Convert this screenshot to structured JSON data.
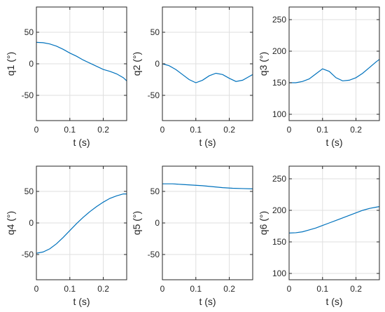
{
  "chart_data": [
    {
      "type": "line",
      "xlabel": "t (s)",
      "ylabel": "q1 (°)",
      "xlim": [
        0,
        0.27
      ],
      "ylim": [
        -90,
        90
      ],
      "xticks": [
        0,
        0.1,
        0.2
      ],
      "xtick_labels": [
        "0",
        "0.1",
        "0.2"
      ],
      "yticks": [
        -50,
        0,
        50
      ],
      "ytick_labels": [
        "-50",
        "0",
        "50"
      ],
      "grid": true,
      "x": [
        0,
        0.02,
        0.04,
        0.06,
        0.08,
        0.1,
        0.12,
        0.14,
        0.16,
        0.18,
        0.2,
        0.22,
        0.24,
        0.26,
        0.27
      ],
      "y": [
        34,
        33.5,
        31.5,
        28,
        23,
        17,
        12,
        6,
        1,
        -4,
        -9,
        -12,
        -16,
        -22,
        -27
      ]
    },
    {
      "type": "line",
      "xlabel": "t (s)",
      "ylabel": "q2 (°)",
      "xlim": [
        0,
        0.27
      ],
      "ylim": [
        -90,
        90
      ],
      "xticks": [
        0,
        0.1,
        0.2
      ],
      "xtick_labels": [
        "0",
        "0.1",
        "0.2"
      ],
      "yticks": [
        -50,
        0,
        50
      ],
      "ytick_labels": [
        "-50",
        "0",
        "50"
      ],
      "grid": true,
      "x": [
        0,
        0.02,
        0.04,
        0.06,
        0.08,
        0.1,
        0.12,
        0.14,
        0.16,
        0.18,
        0.2,
        0.22,
        0.24,
        0.26,
        0.27
      ],
      "y": [
        0,
        -3,
        -9,
        -17,
        -25,
        -30,
        -26,
        -19,
        -15,
        -17,
        -23,
        -28,
        -26,
        -20,
        -17
      ]
    },
    {
      "type": "line",
      "xlabel": "t (s)",
      "ylabel": "q3 (°)",
      "xlim": [
        0,
        0.27
      ],
      "ylim": [
        90,
        270
      ],
      "xticks": [
        0,
        0.1,
        0.2
      ],
      "xtick_labels": [
        "0",
        "0.1",
        "0.2"
      ],
      "yticks": [
        100,
        150,
        200,
        250
      ],
      "ytick_labels": [
        "100",
        "150",
        "200",
        "250"
      ],
      "grid": true,
      "x": [
        0,
        0.02,
        0.04,
        0.06,
        0.08,
        0.1,
        0.12,
        0.14,
        0.16,
        0.18,
        0.2,
        0.22,
        0.24,
        0.26,
        0.27
      ],
      "y": [
        150,
        150,
        152,
        156,
        164,
        172,
        168,
        158,
        153,
        154,
        158,
        165,
        174,
        183,
        187
      ]
    },
    {
      "type": "line",
      "xlabel": "t (s)",
      "ylabel": "q4 (°)",
      "xlim": [
        0,
        0.27
      ],
      "ylim": [
        -90,
        90
      ],
      "xticks": [
        0,
        0.1,
        0.2
      ],
      "xtick_labels": [
        "0",
        "0.1",
        "0.2"
      ],
      "yticks": [
        -50,
        0,
        50
      ],
      "ytick_labels": [
        "-50",
        "0",
        "50"
      ],
      "grid": true,
      "x": [
        0,
        0.02,
        0.04,
        0.06,
        0.08,
        0.1,
        0.12,
        0.14,
        0.16,
        0.18,
        0.2,
        0.22,
        0.24,
        0.26,
        0.27
      ],
      "y": [
        -48,
        -46,
        -41,
        -33,
        -23,
        -12,
        -1,
        9,
        18,
        26,
        33,
        39,
        43,
        46,
        46
      ]
    },
    {
      "type": "line",
      "xlabel": "t (s)",
      "ylabel": "q5 (°)",
      "xlim": [
        0,
        0.27
      ],
      "ylim": [
        -90,
        90
      ],
      "xticks": [
        0,
        0.1,
        0.2
      ],
      "xtick_labels": [
        "0",
        "0.1",
        "0.2"
      ],
      "yticks": [
        -50,
        0,
        50
      ],
      "ytick_labels": [
        "-50",
        "0",
        "50"
      ],
      "grid": true,
      "x": [
        0,
        0.03,
        0.06,
        0.09,
        0.12,
        0.15,
        0.18,
        0.21,
        0.24,
        0.27
      ],
      "y": [
        62,
        62,
        61,
        60,
        59,
        57.5,
        56,
        55,
        54.5,
        54
      ]
    },
    {
      "type": "line",
      "xlabel": "t (s)",
      "ylabel": "q6 (°)",
      "xlim": [
        0,
        0.27
      ],
      "ylim": [
        90,
        270
      ],
      "xticks": [
        0,
        0.1,
        0.2
      ],
      "xtick_labels": [
        "0",
        "0.1",
        "0.2"
      ],
      "yticks": [
        100,
        150,
        200,
        250
      ],
      "ytick_labels": [
        "100",
        "150",
        "200",
        "250"
      ],
      "grid": true,
      "x": [
        0,
        0.02,
        0.04,
        0.06,
        0.08,
        0.1,
        0.12,
        0.14,
        0.16,
        0.18,
        0.2,
        0.22,
        0.24,
        0.26,
        0.27
      ],
      "y": [
        164,
        164.5,
        166,
        169,
        172,
        176,
        180,
        184,
        188,
        192,
        196,
        200,
        203,
        205,
        206
      ]
    }
  ]
}
